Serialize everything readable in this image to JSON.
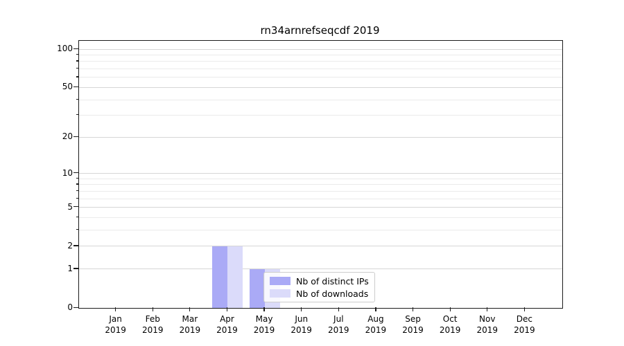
{
  "title": "rn34arnrefseqcdf 2019",
  "chart_data": {
    "type": "bar",
    "title": "rn34arnrefseqcdf 2019",
    "categories": [
      "Jan 2019",
      "Feb 2019",
      "Mar 2019",
      "Apr 2019",
      "May 2019",
      "Jun 2019",
      "Jul 2019",
      "Aug 2019",
      "Sep 2019",
      "Oct 2019",
      "Nov 2019",
      "Dec 2019"
    ],
    "series": [
      {
        "name": "Nb of distinct IPs",
        "color": "#aaaaf6",
        "values": [
          0,
          0,
          0,
          2,
          1,
          0,
          0,
          0,
          0,
          0,
          0,
          0
        ]
      },
      {
        "name": "Nb of downloads",
        "color": "#dbdbfa",
        "values": [
          0,
          0,
          0,
          2,
          1,
          0,
          0,
          0,
          0,
          0,
          0,
          0
        ]
      }
    ],
    "xlabel": "",
    "ylabel": "",
    "yscale": "log1p",
    "ylim": [
      0,
      113
    ],
    "ytick_values": [
      0,
      1,
      2,
      5,
      10,
      20,
      50,
      100
    ],
    "ytick_labels": [
      "0",
      "1",
      "2",
      "5",
      "10",
      "20",
      "50",
      "100"
    ],
    "minor_grid_values": [
      3,
      4,
      6,
      7,
      8,
      9,
      30,
      40,
      60,
      70,
      80,
      90
    ],
    "grid": "horizontal",
    "legend_position": "inside-lower-left-of-center",
    "colors": {
      "major_grid": "#d6d6d6",
      "minor_grid": "#ebebeb",
      "spine": "#1a1a1a",
      "text": "#000000",
      "background": "#ffffff"
    }
  }
}
